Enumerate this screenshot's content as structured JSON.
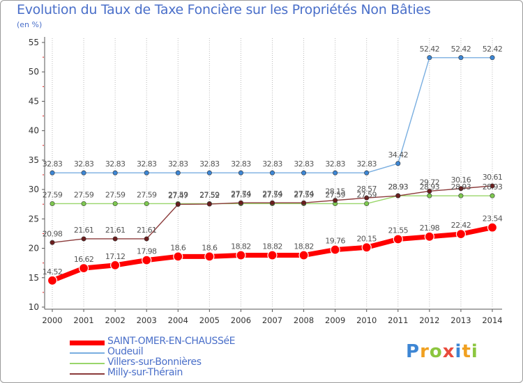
{
  "title": "Evolution du Taux de Taxe Foncière sur les Propriétés Non Bâties",
  "unit": "(en %)",
  "logo": {
    "letters": [
      {
        "ch": "P",
        "color": "#3d86d4"
      },
      {
        "ch": "r",
        "color": "#f0a020"
      },
      {
        "ch": "o",
        "color": "#8cc63f"
      },
      {
        "ch": "x",
        "color": "#e94b3c"
      },
      {
        "ch": "i",
        "color": "#3d86d4"
      },
      {
        "ch": "t",
        "color": "#f0a020"
      },
      {
        "ch": "i",
        "color": "#8cc63f"
      }
    ]
  },
  "chart_data": {
    "type": "line",
    "title": "Evolution du Taux de Taxe Foncière sur les Propriétés Non Bâties",
    "ylabel": "(en %)",
    "x": [
      "2000",
      "2001",
      "2002",
      "2003",
      "2004",
      "2005",
      "2006",
      "2007",
      "2008",
      "2009",
      "2010",
      "2011",
      "2012",
      "2013",
      "2014"
    ],
    "ylim": [
      10,
      55
    ],
    "yticks": [
      10,
      15,
      20,
      25,
      30,
      35,
      40,
      45,
      50,
      55
    ],
    "grid": "vertical",
    "legend_position": "bottom",
    "series": [
      {
        "name": "SAINT-OMER-EN-CHAUSSéE",
        "color": "#ff0000",
        "marker_color": "#ff0000",
        "values": [
          14.52,
          16.62,
          17.12,
          17.98,
          18.6,
          18.6,
          18.82,
          18.82,
          18.82,
          19.76,
          20.15,
          21.55,
          21.98,
          22.42,
          23.54
        ],
        "labels": [
          "14.52",
          "16.62",
          "17.12",
          "17.98",
          "18.6",
          "18.6",
          "18.82",
          "18.82",
          "18.82",
          "19.76",
          "20.15",
          "21.55",
          "21.98",
          "22.42",
          "23.54"
        ]
      },
      {
        "name": "Oudeuil",
        "color": "#79aee0",
        "marker_color": "#3d86d4",
        "values": [
          32.83,
          32.83,
          32.83,
          32.83,
          32.83,
          32.83,
          32.83,
          32.83,
          32.83,
          32.83,
          32.83,
          34.42,
          52.42,
          52.42,
          52.42
        ],
        "labels": [
          "32.83",
          "32.83",
          "32.83",
          "32.83",
          "32.83",
          "32.83",
          "32.83",
          "32.83",
          "32.83",
          "32.83",
          "32.83",
          "34.42",
          "52.42",
          "52.42",
          "52.42"
        ]
      },
      {
        "name": "Villers-sur-Bonnières",
        "color": "#99d66a",
        "marker_color": "#7ec850",
        "values": [
          27.59,
          27.59,
          27.59,
          27.59,
          27.59,
          27.59,
          27.59,
          27.59,
          27.59,
          27.59,
          27.59,
          28.93,
          28.93,
          28.93,
          28.93
        ],
        "labels": [
          "27.59",
          "27.59",
          "27.59",
          "27.59",
          "27.59",
          "27.59",
          "27.59",
          "27.59",
          "27.59",
          "27.59",
          "27.59",
          "28.93",
          "28.93",
          "28.93",
          "28.93"
        ]
      },
      {
        "name": "Milly-sur-Thérain",
        "color": "#8b3a3a",
        "marker_color": "#6b1e1e",
        "values": [
          20.98,
          21.61,
          21.61,
          21.61,
          27.47,
          27.52,
          27.74,
          27.74,
          27.74,
          28.15,
          28.57,
          28.93,
          29.72,
          30.16,
          30.61
        ],
        "labels": [
          "20.98",
          "21.61",
          "21.61",
          "21.61",
          "27.47",
          "27.52",
          "27.74",
          "27.74",
          "27.74",
          "28.15",
          "28.57",
          "28.93",
          "29.72",
          "30.16",
          "30.61"
        ]
      }
    ]
  }
}
